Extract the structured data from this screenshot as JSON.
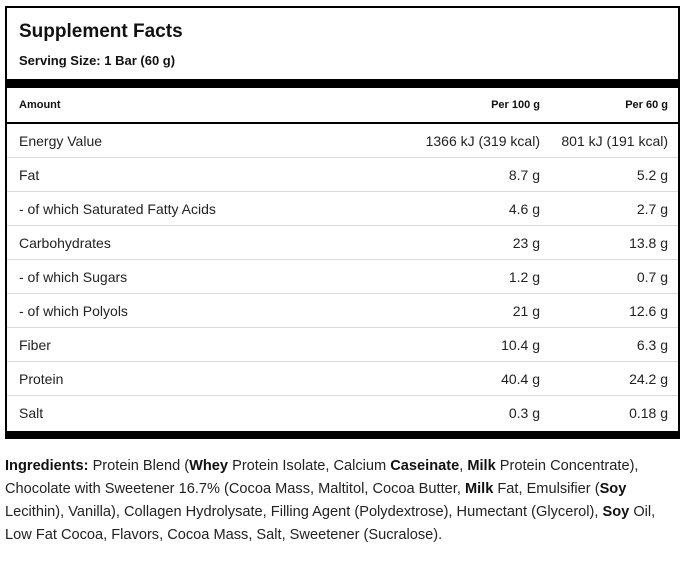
{
  "facts": {
    "title": "Supplement Facts",
    "serving_size": "Serving Size: 1 Bar (60 g)",
    "columns": [
      "Amount",
      "Per 100 g",
      "Per 60 g"
    ],
    "rows": [
      {
        "name": "Energy Value",
        "per100": "1366 kJ (319 kcal)",
        "perServing": "801 kJ (191 kcal)"
      },
      {
        "name": "Fat",
        "per100": "8.7 g",
        "perServing": "5.2 g"
      },
      {
        "name": "- of which Saturated Fatty Acids",
        "per100": "4.6 g",
        "perServing": "2.7 g"
      },
      {
        "name": "Carbohydrates",
        "per100": "23 g",
        "perServing": "13.8 g"
      },
      {
        "name": "- of which Sugars",
        "per100": "1.2 g",
        "perServing": "0.7 g"
      },
      {
        "name": "- of which Polyols",
        "per100": "21 g",
        "perServing": "12.6 g"
      },
      {
        "name": "Fiber",
        "per100": "10.4 g",
        "perServing": "6.3 g"
      },
      {
        "name": "Protein",
        "per100": "40.4 g",
        "perServing": "24.2 g"
      },
      {
        "name": "Salt",
        "per100": "0.3 g",
        "perServing": "0.18 g"
      }
    ]
  },
  "ingredients": {
    "segments": [
      {
        "text": "Ingredients:",
        "bold": true
      },
      {
        "text": " Protein Blend (",
        "bold": false
      },
      {
        "text": "Whey",
        "bold": true
      },
      {
        "text": " Protein Isolate, Calcium ",
        "bold": false
      },
      {
        "text": "Caseinate",
        "bold": true
      },
      {
        "text": ", ",
        "bold": false
      },
      {
        "text": "Milk",
        "bold": true
      },
      {
        "text": " Protein Concentrate), Chocolate with Sweetener 16.7% (Cocoa Mass, Maltitol, Cocoa Butter, ",
        "bold": false
      },
      {
        "text": "Milk",
        "bold": true
      },
      {
        "text": " Fat, Emulsifier (",
        "bold": false
      },
      {
        "text": "Soy",
        "bold": true
      },
      {
        "text": " Lecithin), Vanilla), Collagen Hydrolysate, Filling Agent (Polydextrose), Humectant (Glycerol), ",
        "bold": false
      },
      {
        "text": "Soy",
        "bold": true
      },
      {
        "text": " Oil, Low Fat Cocoa, Flavors, Cocoa Mass, Salt, Sweetener (Sucralose).",
        "bold": false
      }
    ]
  }
}
